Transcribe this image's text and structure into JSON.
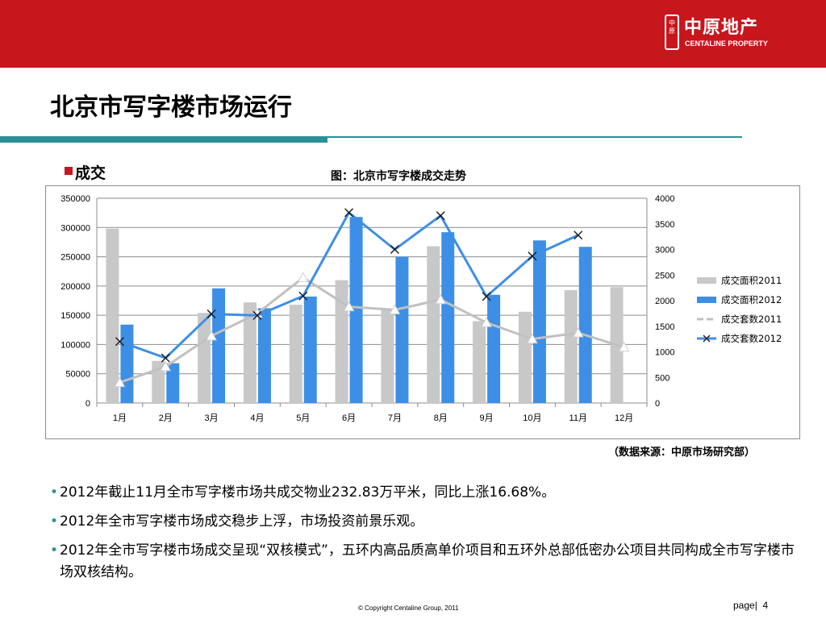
{
  "header": {
    "brand_color": "#c8161d",
    "logo_seal_text": "中原",
    "logo_cn": "中原地产",
    "logo_en": "CENTALINE PROPERTY"
  },
  "page_title": "北京市写字楼市场运行",
  "section_label": "成交",
  "chart_title": "图：北京市写字楼成交走势",
  "source_note": "（数据来源：中原市场研究部）",
  "bullets": [
    "2012年截止11月全市写字楼市场共成交物业232.83万平米，同比上涨16.68%。",
    "2012年全市写字楼市场成交稳步上浮，市场投资前景乐观。",
    "2012年全市写字楼市场成交呈现“双核模式”，五环内高品质高单价项目和五环外总部低密办公项目共同构成全市写字楼市场双核结构。"
  ],
  "footer": {
    "copyright": "© Copyright  Centaline Group, 2011",
    "page_label": "page|",
    "page_number": "4"
  },
  "chart_data": {
    "type": "bar+line",
    "categories": [
      "1月",
      "2月",
      "3月",
      "4月",
      "5月",
      "6月",
      "7月",
      "8月",
      "9月",
      "10月",
      "11月",
      "12月"
    ],
    "y_left": {
      "range": [
        0,
        350000
      ],
      "ticks": [
        0,
        50000,
        100000,
        150000,
        200000,
        250000,
        300000,
        350000
      ]
    },
    "y_right": {
      "range": [
        0,
        4000
      ],
      "ticks": [
        0,
        500,
        1000,
        1500,
        2000,
        2500,
        3000,
        3500,
        4000
      ]
    },
    "grid": true,
    "legend_position": "right",
    "series": [
      {
        "name": "成交面积2011",
        "type": "bar",
        "axis": "left",
        "color": "#c8c8c8",
        "values": [
          298000,
          72000,
          154000,
          172000,
          168000,
          210000,
          160000,
          268000,
          140000,
          156000,
          193000,
          198000
        ]
      },
      {
        "name": "成交面积2012",
        "type": "bar",
        "axis": "left",
        "color": "#3d8fe6",
        "values": [
          134000,
          68000,
          196000,
          162000,
          182000,
          318000,
          250000,
          292000,
          185000,
          278000,
          267000,
          null
        ]
      },
      {
        "name": "成交套数2011",
        "type": "line",
        "axis": "right",
        "color": "#c0c0c0",
        "marker": "triangle",
        "values": [
          400,
          710,
          1310,
          1750,
          2450,
          1880,
          1820,
          2020,
          1570,
          1250,
          1370,
          1090
        ]
      },
      {
        "name": "成交套数2012",
        "type": "line",
        "axis": "right",
        "color": "#3d8fe6",
        "marker": "x",
        "values": [
          1200,
          880,
          1740,
          1710,
          2090,
          3720,
          3000,
          3660,
          2080,
          2870,
          3280,
          null
        ]
      }
    ]
  }
}
